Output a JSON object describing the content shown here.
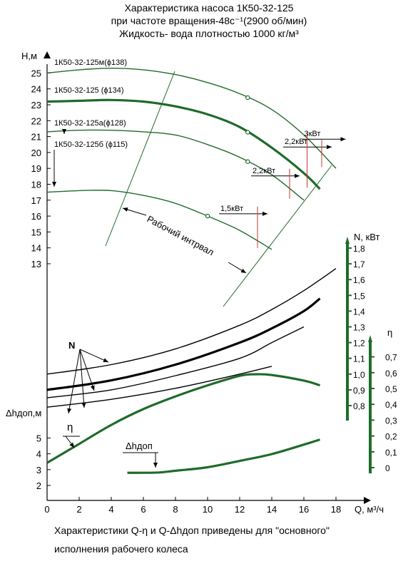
{
  "header": {
    "title": "Характеристика насоса 1К50-32-125",
    "line2": "при частоте вращения-48с⁻¹(2900 об/мин)",
    "line3": "Жидкость- вода плотностью 1000 кг/м³"
  },
  "footnote": {
    "line1": "Характеристики Q-η и Q-Δhдоп приведены для \"основного\"",
    "line2": "исполнения рабочего колеса"
  },
  "colors": {
    "curve": "#1f6b2a",
    "axis": "#000000"
  },
  "chart_data": {
    "type": "line",
    "x": {
      "label": "Q, м³/ч",
      "ticks": [
        "0",
        "2",
        "4",
        "6",
        "8",
        "10",
        "12",
        "14",
        "16",
        "18"
      ],
      "range": [
        0,
        20
      ]
    },
    "axes": {
      "H": {
        "label": "H,м",
        "ticks": [
          "13",
          "14",
          "15",
          "16",
          "17",
          "18",
          "19",
          "20",
          "21",
          "22",
          "23",
          "24",
          "25"
        ],
        "range": [
          12.3,
          26
        ]
      },
      "N": {
        "label": "N, кВт",
        "ticks": [
          "0,8",
          "0,9",
          "1,0",
          "1,1",
          "1,2",
          "1,3",
          "1,4",
          "1,5",
          "1,6",
          "1,7",
          "1,8"
        ],
        "range": [
          0.75,
          1.85
        ]
      },
      "eta": {
        "label": "η",
        "ticks": [
          "0",
          "0,1",
          "0,2",
          "0,3",
          "0,4",
          "0,5",
          "0,6",
          "0,7"
        ],
        "range": [
          -0.05,
          0.75
        ]
      },
      "dh": {
        "label": "Δhдоп,м",
        "ticks": [
          "2",
          "3",
          "4",
          "5"
        ],
        "range": [
          1.5,
          6.5
        ]
      }
    },
    "series": [
      {
        "name": "1К50-32-125м(ϕ138)",
        "axis": "H",
        "points": [
          [
            0,
            25
          ],
          [
            2,
            25.2
          ],
          [
            4,
            25.3
          ],
          [
            6,
            25.2
          ],
          [
            8,
            24.9
          ],
          [
            10,
            24.4
          ],
          [
            12,
            23.7
          ],
          [
            14,
            22.7
          ],
          [
            16,
            21.1
          ],
          [
            18,
            19
          ]
        ]
      },
      {
        "name": "1К50-32-125 (ϕ134)",
        "axis": "H",
        "points": [
          [
            0,
            23.2
          ],
          [
            2,
            23.25
          ],
          [
            4,
            23.3
          ],
          [
            6,
            23.2
          ],
          [
            8,
            22.9
          ],
          [
            10,
            22.4
          ],
          [
            12,
            21.6
          ],
          [
            14,
            20.3
          ],
          [
            16,
            18.7
          ],
          [
            17,
            17.7
          ]
        ]
      },
      {
        "name": "1К50-32-125а(ϕ128)",
        "axis": "H",
        "points": [
          [
            0,
            21.3
          ],
          [
            2,
            21.4
          ],
          [
            4,
            21.4
          ],
          [
            6,
            21.3
          ],
          [
            8,
            21.1
          ],
          [
            10,
            20.5
          ],
          [
            12,
            19.7
          ],
          [
            14,
            18.6
          ],
          [
            16,
            17
          ]
        ]
      },
      {
        "name": "1К50-32-125б (ϕ115)",
        "axis": "H",
        "points": [
          [
            0,
            17.5
          ],
          [
            2,
            17.6
          ],
          [
            4,
            17.6
          ],
          [
            6,
            17.3
          ],
          [
            8,
            16.8
          ],
          [
            10,
            16
          ],
          [
            12,
            15.1
          ],
          [
            14,
            13.9
          ]
        ]
      },
      {
        "name": "N (ϕ138)",
        "axis": "N",
        "points": [
          [
            0,
            1.0
          ],
          [
            4,
            1.06
          ],
          [
            8,
            1.16
          ],
          [
            12,
            1.31
          ],
          [
            14,
            1.41
          ],
          [
            16,
            1.53
          ],
          [
            18,
            1.67
          ]
        ]
      },
      {
        "name": "N (ϕ134)",
        "axis": "N",
        "points": [
          [
            0,
            0.9
          ],
          [
            4,
            0.96
          ],
          [
            8,
            1.06
          ],
          [
            12,
            1.2
          ],
          [
            14,
            1.29
          ],
          [
            16,
            1.4
          ],
          [
            17,
            1.48
          ]
        ]
      },
      {
        "name": "N (ϕ128)",
        "axis": "N",
        "points": [
          [
            0,
            0.85
          ],
          [
            4,
            0.9
          ],
          [
            8,
            0.99
          ],
          [
            12,
            1.1
          ],
          [
            14,
            1.2
          ],
          [
            16,
            1.3
          ]
        ]
      },
      {
        "name": "N (ϕ115)",
        "axis": "N",
        "points": [
          [
            0,
            0.79
          ],
          [
            4,
            0.84
          ],
          [
            8,
            0.91
          ],
          [
            12,
            1.0
          ],
          [
            14,
            1.05
          ]
        ]
      },
      {
        "name": "η",
        "axis": "eta",
        "points": [
          [
            0,
            0.03
          ],
          [
            2,
            0.15
          ],
          [
            4,
            0.27
          ],
          [
            6,
            0.37
          ],
          [
            8,
            0.45
          ],
          [
            10,
            0.52
          ],
          [
            12,
            0.58
          ],
          [
            13,
            0.59
          ],
          [
            14,
            0.585
          ],
          [
            16,
            0.55
          ],
          [
            17,
            0.52
          ]
        ]
      },
      {
        "name": "Δhдоп",
        "axis": "dh",
        "points": [
          [
            5,
            2.8
          ],
          [
            6,
            2.8
          ],
          [
            7,
            2.82
          ],
          [
            8,
            2.93
          ],
          [
            10,
            3.15
          ],
          [
            12,
            3.55
          ],
          [
            14,
            3.98
          ],
          [
            16,
            4.58
          ],
          [
            17,
            4.9
          ]
        ]
      }
    ],
    "operating_points": [
      {
        "series": "1К50-32-125м(ϕ138)",
        "q": 12.5,
        "label": "2,2кВт"
      },
      {
        "series": "1К50-32-125 (ϕ134)",
        "q": 12.5,
        "label": "3кВт"
      },
      {
        "series": "1К50-32-125а(ϕ128)",
        "q": 12.5,
        "label": "2,2кВт"
      },
      {
        "series": "1К50-32-125б (ϕ115)",
        "q": 10,
        "label": "1,5кВт"
      }
    ],
    "annotations": {
      "working_interval": "Рабочий интрвал",
      "n_marker": "N",
      "eta_marker": "η",
      "dh_marker": "Δhдоп"
    }
  }
}
